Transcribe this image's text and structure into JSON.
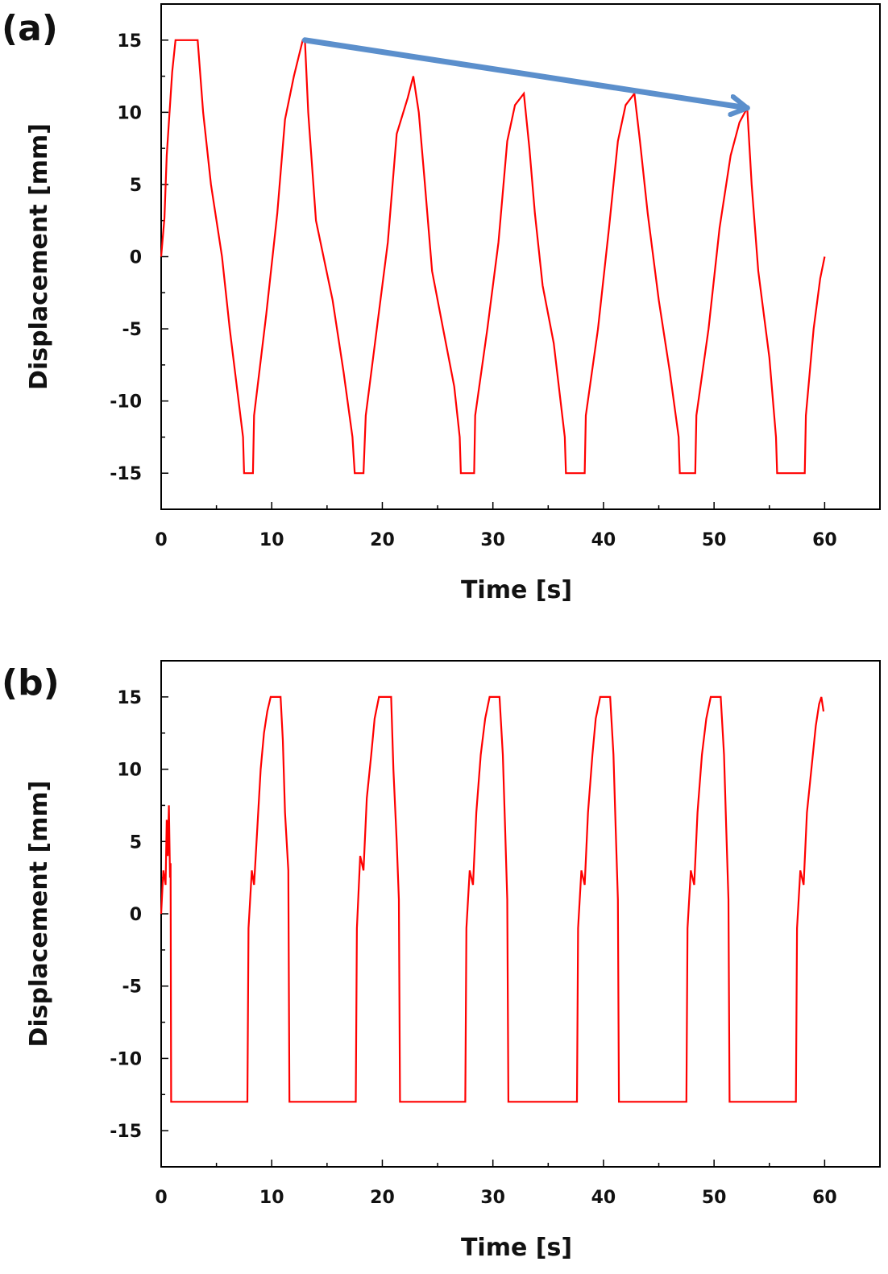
{
  "chart_data": [
    {
      "panel_label": "(a)",
      "type": "line",
      "xlabel": "Time [s]",
      "ylabel": "Displacement [mm]",
      "xlim": [
        0,
        65
      ],
      "ylim": [
        -17.5,
        17.5
      ],
      "xticks": [
        0,
        10,
        20,
        30,
        40,
        50,
        60
      ],
      "yticks": [
        -15,
        -10,
        -5,
        0,
        5,
        10,
        15
      ],
      "grid": false,
      "line_color": "#ff0000",
      "series": [
        {
          "points": [
            [
              0,
              0
            ],
            [
              0.3,
              2.7
            ],
            [
              0.5,
              7
            ],
            [
              1.0,
              12.8
            ],
            [
              1.3,
              15
            ],
            [
              3.3,
              15
            ],
            [
              3.8,
              10
            ],
            [
              4.5,
              5
            ],
            [
              5.5,
              0
            ],
            [
              6.2,
              -5
            ],
            [
              7.0,
              -10
            ],
            [
              7.4,
              -12.5
            ],
            [
              7.5,
              -15
            ],
            [
              8.3,
              -15
            ],
            [
              8.4,
              -11
            ],
            [
              9.5,
              -4
            ],
            [
              10.5,
              3
            ],
            [
              11.2,
              9.5
            ],
            [
              12.0,
              12.5
            ],
            [
              12.8,
              15
            ],
            [
              13.0,
              15
            ],
            [
              13.3,
              10
            ],
            [
              14.0,
              2.5
            ],
            [
              15.5,
              -3
            ],
            [
              16.5,
              -8
            ],
            [
              17.3,
              -12.5
            ],
            [
              17.5,
              -15
            ],
            [
              18.3,
              -15
            ],
            [
              18.5,
              -11
            ],
            [
              19.5,
              -5
            ],
            [
              20.5,
              1
            ],
            [
              21.3,
              8.5
            ],
            [
              22.3,
              11
            ],
            [
              22.8,
              12.5
            ],
            [
              23.3,
              10
            ],
            [
              23.8,
              5.5
            ],
            [
              24.5,
              -1
            ],
            [
              25.5,
              -5
            ],
            [
              26.5,
              -9
            ],
            [
              27.0,
              -12.5
            ],
            [
              27.1,
              -15
            ],
            [
              28.3,
              -15
            ],
            [
              28.4,
              -11
            ],
            [
              29.5,
              -5
            ],
            [
              30.5,
              1
            ],
            [
              31.3,
              8
            ],
            [
              32.0,
              10.5
            ],
            [
              32.8,
              11.3
            ],
            [
              33.3,
              7.5
            ],
            [
              33.8,
              3
            ],
            [
              34.5,
              -2
            ],
            [
              35.5,
              -6
            ],
            [
              36.5,
              -12.5
            ],
            [
              36.6,
              -15
            ],
            [
              38.3,
              -15
            ],
            [
              38.4,
              -11
            ],
            [
              39.5,
              -5
            ],
            [
              40.5,
              2
            ],
            [
              41.3,
              8
            ],
            [
              42.0,
              10.5
            ],
            [
              42.8,
              11.3
            ],
            [
              43.3,
              8
            ],
            [
              44.0,
              3
            ],
            [
              45.0,
              -3
            ],
            [
              46.0,
              -8
            ],
            [
              46.8,
              -12.5
            ],
            [
              46.9,
              -15
            ],
            [
              48.3,
              -15
            ],
            [
              48.4,
              -11
            ],
            [
              49.5,
              -5
            ],
            [
              50.5,
              2
            ],
            [
              51.5,
              7
            ],
            [
              52.3,
              9.3
            ],
            [
              53.0,
              10.3
            ],
            [
              53.4,
              5
            ],
            [
              54.0,
              -1
            ],
            [
              55.0,
              -7
            ],
            [
              55.6,
              -12.5
            ],
            [
              55.7,
              -15
            ],
            [
              58.2,
              -15
            ],
            [
              58.3,
              -11
            ],
            [
              59.0,
              -5
            ],
            [
              59.6,
              -1.5
            ],
            [
              60.0,
              0
            ]
          ]
        }
      ],
      "annotation": {
        "type": "arrow",
        "from": [
          13,
          15
        ],
        "to": [
          53,
          10.3
        ],
        "color": "#5b8fcc"
      }
    },
    {
      "panel_label": "(b)",
      "type": "line",
      "xlabel": "Time [s]",
      "ylabel": "Displacement [mm]",
      "xlim": [
        0,
        65
      ],
      "ylim": [
        -17.5,
        17.5
      ],
      "xticks": [
        0,
        10,
        20,
        30,
        40,
        50,
        60
      ],
      "yticks": [
        -15,
        -10,
        -5,
        0,
        5,
        10,
        15
      ],
      "grid": false,
      "line_color": "#ff0000",
      "series": [
        {
          "points": [
            [
              0,
              0
            ],
            [
              0.2,
              3
            ],
            [
              0.4,
              2
            ],
            [
              0.5,
              6.5
            ],
            [
              0.6,
              4
            ],
            [
              0.7,
              7.5
            ],
            [
              0.8,
              2.5
            ],
            [
              0.85,
              3.5
            ],
            [
              0.9,
              -13
            ],
            [
              7.8,
              -13
            ],
            [
              7.9,
              -1
            ],
            [
              8.2,
              3
            ],
            [
              8.4,
              2
            ],
            [
              8.7,
              6
            ],
            [
              9.0,
              10
            ],
            [
              9.3,
              12.5
            ],
            [
              9.6,
              14
            ],
            [
              9.9,
              15
            ],
            [
              10.8,
              15
            ],
            [
              11.0,
              12
            ],
            [
              11.2,
              7
            ],
            [
              11.5,
              3
            ],
            [
              11.6,
              -13
            ],
            [
              17.6,
              -13
            ],
            [
              17.7,
              -1
            ],
            [
              18.0,
              4
            ],
            [
              18.3,
              3
            ],
            [
              18.6,
              8
            ],
            [
              19.0,
              11
            ],
            [
              19.3,
              13.5
            ],
            [
              19.7,
              15
            ],
            [
              20.8,
              15
            ],
            [
              21.0,
              10
            ],
            [
              21.3,
              5
            ],
            [
              21.5,
              1
            ],
            [
              21.6,
              -13
            ],
            [
              27.5,
              -13
            ],
            [
              27.6,
              -1
            ],
            [
              27.9,
              3
            ],
            [
              28.2,
              2
            ],
            [
              28.5,
              7
            ],
            [
              28.9,
              11
            ],
            [
              29.3,
              13.5
            ],
            [
              29.7,
              15
            ],
            [
              30.6,
              15
            ],
            [
              30.9,
              11
            ],
            [
              31.1,
              6
            ],
            [
              31.3,
              1
            ],
            [
              31.4,
              -13
            ],
            [
              37.6,
              -13
            ],
            [
              37.7,
              -1
            ],
            [
              38.0,
              3
            ],
            [
              38.3,
              2
            ],
            [
              38.6,
              7
            ],
            [
              39.0,
              11
            ],
            [
              39.3,
              13.5
            ],
            [
              39.7,
              15
            ],
            [
              40.6,
              15
            ],
            [
              40.9,
              11
            ],
            [
              41.1,
              6
            ],
            [
              41.3,
              1
            ],
            [
              41.4,
              -13
            ],
            [
              47.5,
              -13
            ],
            [
              47.6,
              -1
            ],
            [
              47.9,
              3
            ],
            [
              48.2,
              2
            ],
            [
              48.5,
              7
            ],
            [
              48.9,
              11
            ],
            [
              49.3,
              13.5
            ],
            [
              49.7,
              15
            ],
            [
              50.6,
              15
            ],
            [
              50.9,
              11
            ],
            [
              51.1,
              6
            ],
            [
              51.3,
              1
            ],
            [
              51.4,
              -13
            ],
            [
              57.4,
              -13
            ],
            [
              57.5,
              -1
            ],
            [
              57.8,
              3
            ],
            [
              58.1,
              2
            ],
            [
              58.4,
              7
            ],
            [
              58.8,
              10
            ],
            [
              59.2,
              13
            ],
            [
              59.5,
              14.5
            ],
            [
              59.7,
              15
            ],
            [
              59.9,
              14
            ]
          ]
        }
      ]
    }
  ]
}
